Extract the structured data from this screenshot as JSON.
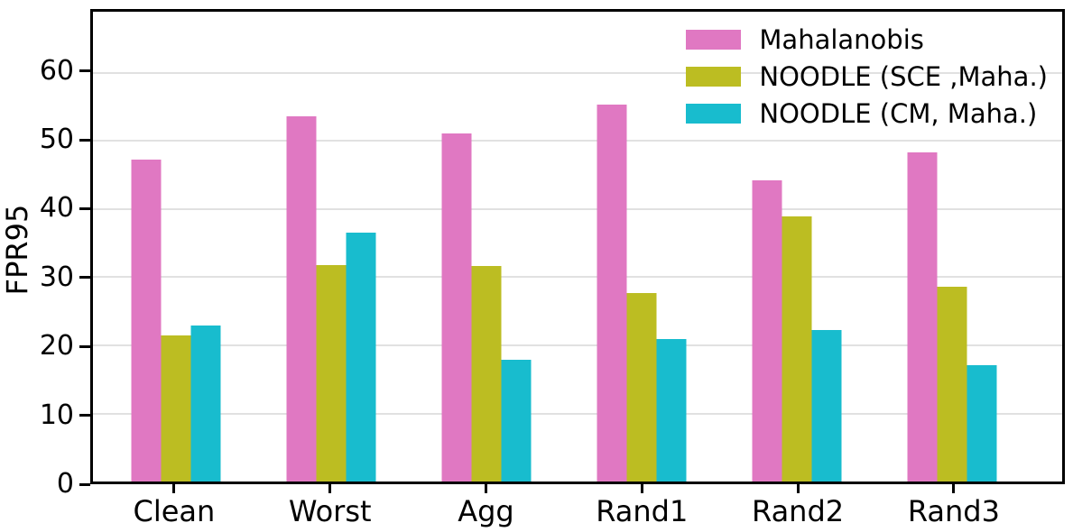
{
  "chart_data": {
    "type": "bar",
    "title": "",
    "xlabel": "",
    "ylabel": "FPR95",
    "categories": [
      "Clean",
      "Worst",
      "Agg",
      "Rand1",
      "Rand2",
      "Rand3"
    ],
    "series": [
      {
        "name": "Mahalanobis",
        "color": "#e078c2",
        "values": [
          47.3,
          53.7,
          51.1,
          55.3,
          44.3,
          48.4
        ]
      },
      {
        "name": "NOODLE (SCE ,Maha.)",
        "color": "#bcbd22",
        "values": [
          21.5,
          31.8,
          31.6,
          27.7,
          38.9,
          28.6
        ]
      },
      {
        "name": "NOODLE (CM, Maha.)",
        "color": "#18bcce",
        "values": [
          22.9,
          36.5,
          17.9,
          20.9,
          22.2,
          17.1
        ]
      }
    ],
    "yticks": [
      0,
      10,
      20,
      30,
      40,
      50,
      60
    ],
    "ylim": [
      0,
      69
    ],
    "grid": true,
    "legend_position": "upper right",
    "colors": {
      "grid": "#e1e1e1",
      "spine": "#000000",
      "text": "#000000",
      "background": "#ffffff"
    }
  }
}
